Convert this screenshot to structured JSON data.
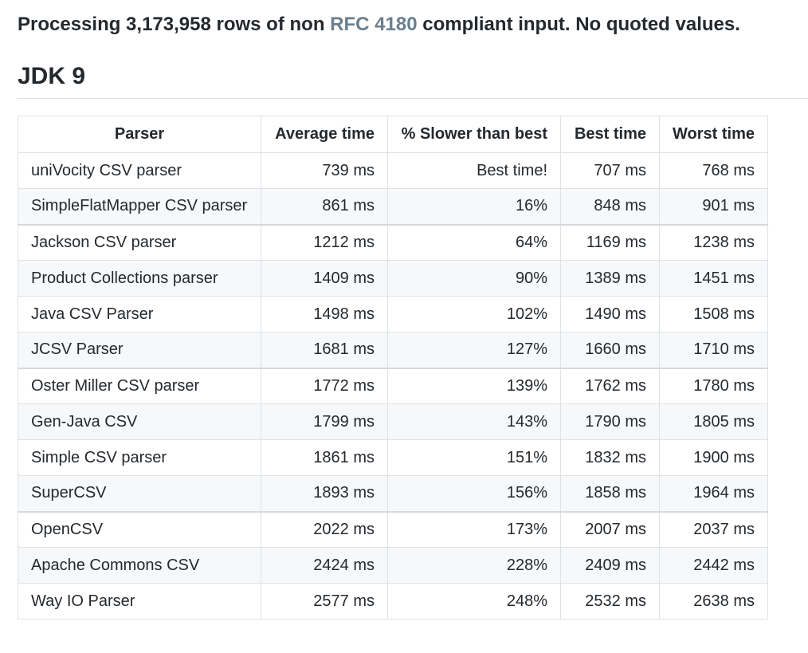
{
  "intro": {
    "prefix": "Processing 3,173,958 rows of non ",
    "link": "RFC 4180",
    "suffix": " compliant input. No quoted values."
  },
  "heading": "JDK 9",
  "table": {
    "headers": [
      "Parser",
      "Average time",
      "% Slower than best",
      "Best time",
      "Worst time"
    ],
    "rows": [
      [
        "uniVocity CSV parser",
        "739 ms",
        "Best time!",
        "707 ms",
        "768 ms"
      ],
      [
        "SimpleFlatMapper CSV parser",
        "861 ms",
        "16%",
        "848 ms",
        "901 ms"
      ],
      [
        "Jackson CSV parser",
        "1212 ms",
        "64%",
        "1169 ms",
        "1238 ms"
      ],
      [
        "Product Collections parser",
        "1409 ms",
        "90%",
        "1389 ms",
        "1451 ms"
      ],
      [
        "Java CSV Parser",
        "1498 ms",
        "102%",
        "1490 ms",
        "1508 ms"
      ],
      [
        "JCSV Parser",
        "1681 ms",
        "127%",
        "1660 ms",
        "1710 ms"
      ],
      [
        "Oster Miller CSV parser",
        "1772 ms",
        "139%",
        "1762 ms",
        "1780 ms"
      ],
      [
        "Gen-Java CSV",
        "1799 ms",
        "143%",
        "1790 ms",
        "1805 ms"
      ],
      [
        "Simple CSV parser",
        "1861 ms",
        "151%",
        "1832 ms",
        "1900 ms"
      ],
      [
        "SuperCSV",
        "1893 ms",
        "156%",
        "1858 ms",
        "1964 ms"
      ],
      [
        "OpenCSV",
        "2022 ms",
        "173%",
        "2007 ms",
        "2037 ms"
      ],
      [
        "Apache Commons CSV",
        "2424 ms",
        "228%",
        "2409 ms",
        "2442 ms"
      ],
      [
        "Way IO Parser",
        "2577 ms",
        "248%",
        "2532 ms",
        "2638 ms"
      ]
    ]
  },
  "colors": {
    "text": "#24292e",
    "link": "#6a7f8f",
    "border": "#dfe2e5",
    "stripe": "#f6f8fa"
  }
}
